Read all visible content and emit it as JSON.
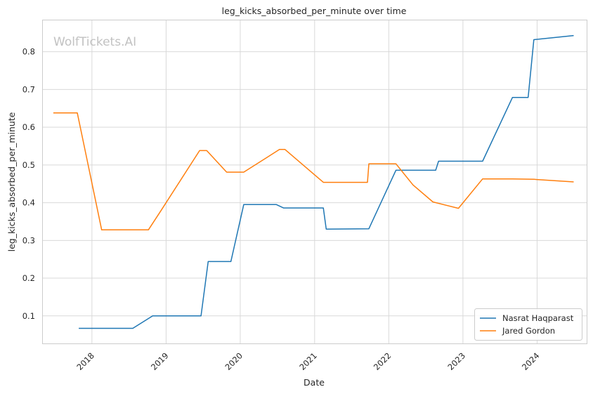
{
  "chart_data": {
    "type": "line",
    "title": "leg_kicks_absorbed_per_minute over time",
    "xlabel": "Date",
    "ylabel": "leg_kicks_absorbed_per_minute",
    "watermark": "WolfTickets.AI",
    "x_ticks": [
      "2018",
      "2019",
      "2020",
      "2021",
      "2022",
      "2023",
      "2024"
    ],
    "y_ticks": [
      "0.1",
      "0.2",
      "0.3",
      "0.4",
      "0.5",
      "0.6",
      "0.7",
      "0.8"
    ],
    "xlim": [
      "2017-05-01",
      "2024-09-01"
    ],
    "ylim": [
      0.027,
      0.885
    ],
    "grid": true,
    "legend_position": "lower-right",
    "series": [
      {
        "name": "Nasrat Haqparast",
        "color": "#1f77b4",
        "points": [
          [
            "2017-10-28",
            0.067
          ],
          [
            "2018-07-21",
            0.067
          ],
          [
            "2018-10-27",
            0.1
          ],
          [
            "2019-06-22",
            0.1
          ],
          [
            "2019-07-27",
            0.244
          ],
          [
            "2019-11-16",
            0.244
          ],
          [
            "2020-01-18",
            0.395
          ],
          [
            "2020-06-27",
            0.395
          ],
          [
            "2020-08-01",
            0.386
          ],
          [
            "2021-02-13",
            0.386
          ],
          [
            "2021-02-27",
            0.33
          ],
          [
            "2021-09-25",
            0.331
          ],
          [
            "2022-02-05",
            0.486
          ],
          [
            "2022-08-20",
            0.486
          ],
          [
            "2022-09-03",
            0.51
          ],
          [
            "2023-04-08",
            0.51
          ],
          [
            "2023-09-02",
            0.679
          ],
          [
            "2023-11-18",
            0.679
          ],
          [
            "2023-12-16",
            0.832
          ],
          [
            "2024-06-29",
            0.843
          ]
        ]
      },
      {
        "name": "Jared Gordon",
        "color": "#ff7f0e",
        "points": [
          [
            "2017-06-25",
            0.638
          ],
          [
            "2017-10-21",
            0.638
          ],
          [
            "2018-02-18",
            0.328
          ],
          [
            "2018-10-06",
            0.328
          ],
          [
            "2018-12-08",
            0.38
          ],
          [
            "2019-06-15",
            0.538
          ],
          [
            "2019-07-20",
            0.538
          ],
          [
            "2019-10-26",
            0.481
          ],
          [
            "2020-01-18",
            0.481
          ],
          [
            "2020-07-12",
            0.541
          ],
          [
            "2020-08-08",
            0.541
          ],
          [
            "2021-02-13",
            0.454
          ],
          [
            "2021-09-18",
            0.454
          ],
          [
            "2021-09-25",
            0.503
          ],
          [
            "2022-02-05",
            0.503
          ],
          [
            "2022-04-30",
            0.447
          ],
          [
            "2022-08-06",
            0.402
          ],
          [
            "2022-12-10",
            0.385
          ],
          [
            "2023-04-08",
            0.463
          ],
          [
            "2023-09-02",
            0.463
          ],
          [
            "2023-12-16",
            0.462
          ],
          [
            "2024-06-29",
            0.455
          ]
        ]
      }
    ]
  }
}
